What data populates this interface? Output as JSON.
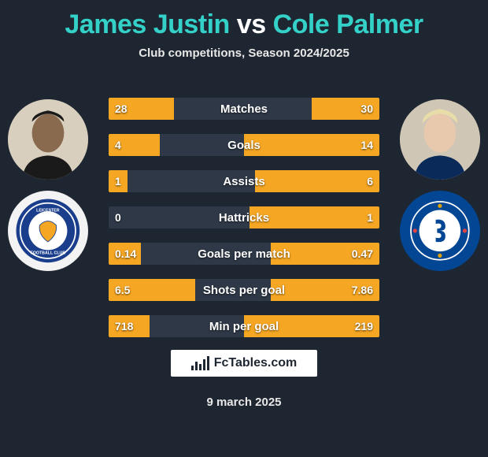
{
  "title_parts": {
    "player1": "James Justin",
    "connector": " vs ",
    "player2": "Cole Palmer"
  },
  "title_colors": {
    "player1": "#34d1c8",
    "connector": "#ffffff",
    "player2": "#34d1c8"
  },
  "subtitle": "Club competitions, Season 2024/2025",
  "colors": {
    "background": "#1e2631",
    "track": "#2e3847",
    "fill": "#f5a623",
    "text": "#ffffff"
  },
  "stats": [
    {
      "label": "Matches",
      "left_val": "28",
      "right_val": "30",
      "left_pct": 24,
      "right_pct": 25
    },
    {
      "label": "Goals",
      "left_val": "4",
      "right_val": "14",
      "left_pct": 19,
      "right_pct": 50
    },
    {
      "label": "Assists",
      "left_val": "1",
      "right_val": "6",
      "left_pct": 7,
      "right_pct": 46
    },
    {
      "label": "Hattricks",
      "left_val": "0",
      "right_val": "1",
      "left_pct": 0,
      "right_pct": 48
    },
    {
      "label": "Goals per match",
      "left_val": "0.14",
      "right_val": "0.47",
      "left_pct": 12,
      "right_pct": 40
    },
    {
      "label": "Shots per goal",
      "left_val": "6.5",
      "right_val": "7.86",
      "left_pct": 32,
      "right_pct": 40
    },
    {
      "label": "Min per goal",
      "left_val": "718",
      "right_val": "219",
      "left_pct": 15,
      "right_pct": 50
    }
  ],
  "clubs": {
    "left": {
      "name": "Leicester City",
      "bg": "#f3f3f3",
      "primary": "#1a3e8c",
      "accent": "#f5a623"
    },
    "right": {
      "name": "Chelsea",
      "bg": "#034694",
      "primary": "#ffffff",
      "accent": "#dba111"
    }
  },
  "brand": "FcTables.com",
  "date": "9 march 2025"
}
